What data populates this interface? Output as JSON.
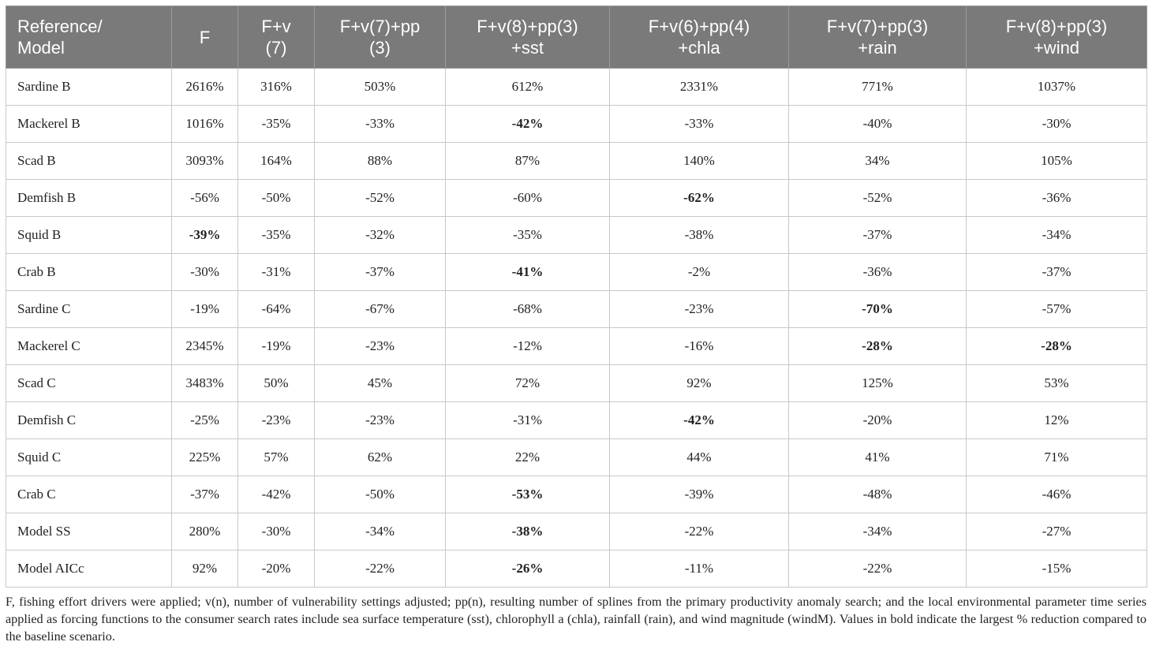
{
  "table": {
    "headers": [
      "Reference/\nModel",
      "F",
      "F+v\n(7)",
      "F+v(7)+pp\n(3)",
      "F+v(8)+pp(3)\n+sst",
      "F+v(6)+pp(4)\n+chla",
      "F+v(7)+pp(3)\n+rain",
      "F+v(8)+pp(3)\n+wind"
    ],
    "rows": [
      {
        "label": "Sardine B",
        "values": [
          "2616%",
          "316%",
          "503%",
          "612%",
          "2331%",
          "771%",
          "1037%"
        ],
        "bold": []
      },
      {
        "label": "Mackerel B",
        "values": [
          "1016%",
          "-35%",
          "-33%",
          "-42%",
          "-33%",
          "-40%",
          "-30%"
        ],
        "bold": [
          3
        ]
      },
      {
        "label": "Scad B",
        "values": [
          "3093%",
          "164%",
          "88%",
          "87%",
          "140%",
          "34%",
          "105%"
        ],
        "bold": []
      },
      {
        "label": "Demfish B",
        "values": [
          "-56%",
          "-50%",
          "-52%",
          "-60%",
          "-62%",
          "-52%",
          "-36%"
        ],
        "bold": [
          4
        ]
      },
      {
        "label": "Squid B",
        "values": [
          "-39%",
          "-35%",
          "-32%",
          "-35%",
          "-38%",
          "-37%",
          "-34%"
        ],
        "bold": [
          0
        ]
      },
      {
        "label": "Crab B",
        "values": [
          "-30%",
          "-31%",
          "-37%",
          "-41%",
          "-2%",
          "-36%",
          "-37%"
        ],
        "bold": [
          3
        ]
      },
      {
        "label": "Sardine C",
        "values": [
          "-19%",
          "-64%",
          "-67%",
          "-68%",
          "-23%",
          "-70%",
          "-57%"
        ],
        "bold": [
          5
        ]
      },
      {
        "label": "Mackerel C",
        "values": [
          "2345%",
          "-19%",
          "-23%",
          "-12%",
          "-16%",
          "-28%",
          "-28%"
        ],
        "bold": [
          5,
          6
        ]
      },
      {
        "label": "Scad C",
        "values": [
          "3483%",
          "50%",
          "45%",
          "72%",
          "92%",
          "125%",
          "53%"
        ],
        "bold": []
      },
      {
        "label": "Demfish C",
        "values": [
          "-25%",
          "-23%",
          "-23%",
          "-31%",
          "-42%",
          "-20%",
          "12%"
        ],
        "bold": [
          4
        ]
      },
      {
        "label": "Squid C",
        "values": [
          "225%",
          "57%",
          "62%",
          "22%",
          "44%",
          "41%",
          "71%"
        ],
        "bold": []
      },
      {
        "label": "Crab C",
        "values": [
          "-37%",
          "-42%",
          "-50%",
          "-53%",
          "-39%",
          "-48%",
          "-46%"
        ],
        "bold": [
          3
        ]
      },
      {
        "label": "Model SS",
        "values": [
          "280%",
          "-30%",
          "-34%",
          "-38%",
          "-22%",
          "-34%",
          "-27%"
        ],
        "bold": [
          3
        ]
      },
      {
        "label": "Model AICc",
        "values": [
          "92%",
          "-20%",
          "-22%",
          "-26%",
          "-11%",
          "-22%",
          "-15%"
        ],
        "bold": [
          3
        ]
      }
    ]
  },
  "footnote": "F, fishing effort drivers were applied; v(n), number of vulnerability settings adjusted; pp(n), resulting number of splines from the primary productivity anomaly search; and the local environmental parameter time series applied as forcing functions to the consumer search rates include sea surface temperature (sst), chlorophyll a (chla), rainfall (rain), and wind magnitude (windM). Values in bold indicate the largest % reduction compared to the baseline scenario.",
  "colors": {
    "header_bg": "#7a7a7a",
    "header_text": "#ffffff",
    "grid_line": "#c8c8c8"
  }
}
